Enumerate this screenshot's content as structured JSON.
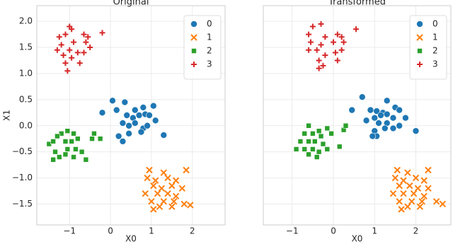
{
  "chart_data": [
    {
      "type": "scatter",
      "title": "Original",
      "xlabel": "X0",
      "ylabel": "X1",
      "xlim": [
        -1.8,
        2.8
      ],
      "ylim": [
        -1.9,
        2.3
      ],
      "xticks": [
        {
          "value": -1,
          "label": "−1"
        },
        0,
        1,
        2
      ],
      "yticks": [
        {
          "value": -1.5,
          "label": "−1.5"
        },
        {
          "value": -1,
          "label": "−1.0"
        },
        {
          "value": -0.5,
          "label": "−0.5"
        },
        {
          "value": 0,
          "label": "0.0"
        },
        0.5,
        {
          "value": 1,
          "label": "1.0"
        },
        1.5,
        {
          "value": 2,
          "label": "2.0"
        }
      ],
      "grid": true,
      "legend": "upper right",
      "series": [
        {
          "name": "0",
          "color": "#1f77b4",
          "marker": "circle",
          "x": [
            0.05,
            0.35,
            -0.2,
            0.15,
            0.6,
            0.8,
            1.05,
            0.4,
            0.55,
            0.7,
            0.85,
            0.95,
            1.1,
            0.3,
            0.45,
            0.6,
            0.8,
            0.9,
            0.45,
            0.2,
            0.3,
            0.75,
            1.3
          ],
          "y": [
            0.48,
            0.45,
            0.25,
            0.3,
            0.3,
            0.35,
            0.38,
            0.2,
            0.15,
            0.2,
            0.22,
            0.2,
            0.1,
            0.05,
            0.0,
            0.05,
            -0.05,
            0.0,
            -0.15,
            -0.2,
            -0.3,
            -0.12,
            -0.18
          ]
        },
        {
          "name": "1",
          "color": "#ff7f0e",
          "marker": "x",
          "x": [
            0.95,
            1.3,
            1.85,
            0.9,
            1.1,
            1.4,
            1.6,
            1.05,
            1.25,
            1.5,
            1.75,
            0.85,
            1.15,
            1.4,
            1.6,
            1.0,
            1.3,
            1.55,
            1.8,
            1.95,
            1.05,
            1.5,
            1.2
          ],
          "y": [
            -0.85,
            -0.9,
            -0.85,
            -1.0,
            -1.05,
            -1.0,
            -1.05,
            -1.15,
            -1.2,
            -1.15,
            -1.2,
            -1.3,
            -1.3,
            -1.3,
            -1.35,
            -1.45,
            -1.45,
            -1.45,
            -1.5,
            -1.52,
            -1.6,
            -1.55,
            -1.55
          ]
        },
        {
          "name": "2",
          "color": "#2ca02c",
          "marker": "square",
          "x": [
            -1.5,
            -1.35,
            -1.4,
            -1.2,
            -1.05,
            -0.9,
            -1.3,
            -1.1,
            -0.95,
            -0.8,
            -1.25,
            -1.1,
            -0.85,
            -0.7,
            -1.05,
            -1.4,
            -0.9,
            -0.6,
            -0.4,
            -0.25,
            -0.45
          ],
          "y": [
            -0.35,
            -0.5,
            -0.3,
            -0.15,
            -0.1,
            -0.15,
            -0.2,
            -0.3,
            -0.3,
            -0.25,
            -0.6,
            -0.55,
            -0.45,
            -0.5,
            -0.45,
            -0.65,
            -0.6,
            -0.65,
            -0.15,
            -0.25,
            -0.25
          ]
        },
        {
          "name": "3",
          "color": "#d62728",
          "marker": "plus",
          "x": [
            -1.0,
            -0.95,
            -1.1,
            -1.25,
            -0.65,
            -0.55,
            -0.2,
            -1.2,
            -0.9,
            -0.6,
            -0.5,
            -1.3,
            -1.0,
            -0.8,
            -0.65,
            -1.15,
            -0.95,
            -1.1,
            -1.05,
            -0.75
          ],
          "y": [
            1.9,
            1.85,
            1.75,
            1.7,
            1.75,
            1.7,
            1.78,
            1.55,
            1.6,
            1.6,
            1.5,
            1.45,
            1.45,
            1.4,
            1.4,
            1.35,
            1.3,
            1.2,
            1.05,
            1.2
          ]
        }
      ]
    },
    {
      "type": "scatter",
      "title": "Transformed",
      "xlabel": "X0",
      "xlim": [
        -1.7,
        2.85
      ],
      "ylim": [
        -1.9,
        2.3
      ],
      "xticks": [
        {
          "value": -1,
          "label": "−1"
        },
        0,
        1,
        2
      ],
      "yticks": [
        -1.5,
        -1,
        -0.5,
        0,
        0.5,
        1,
        1.5,
        2
      ],
      "grid": true,
      "legend": "upper right",
      "series": [
        {
          "name": "0",
          "color": "#1f77b4",
          "marker": "circle",
          "x": [
            0.7,
            1.3,
            0.45,
            0.9,
            1.05,
            1.2,
            1.5,
            1.6,
            1.0,
            1.15,
            1.3,
            1.45,
            1.75,
            0.8,
            1.1,
            1.3,
            1.6,
            1.0,
            1.25,
            1.45,
            1.05,
            0.95,
            2.0
          ],
          "y": [
            0.55,
            0.48,
            0.3,
            0.3,
            0.28,
            0.25,
            0.35,
            0.3,
            0.15,
            0.2,
            0.22,
            0.15,
            0.15,
            0.1,
            0.05,
            0.05,
            0.0,
            -0.1,
            -0.05,
            -0.05,
            -0.2,
            -0.2,
            -0.1
          ]
        },
        {
          "name": "1",
          "color": "#ff7f0e",
          "marker": "x",
          "x": [
            1.55,
            1.8,
            2.3,
            1.5,
            1.7,
            2.0,
            2.2,
            1.6,
            1.85,
            2.05,
            2.3,
            1.45,
            1.7,
            1.95,
            2.2,
            1.6,
            1.9,
            2.15,
            2.5,
            2.65,
            1.65,
            2.1,
            1.8
          ],
          "y": [
            -0.85,
            -0.9,
            -0.85,
            -1.0,
            -1.05,
            -1.0,
            -1.05,
            -1.15,
            -1.15,
            -1.2,
            -1.2,
            -1.3,
            -1.3,
            -1.3,
            -1.35,
            -1.45,
            -1.45,
            -1.45,
            -1.45,
            -1.5,
            -1.6,
            -1.55,
            -1.55
          ]
        },
        {
          "name": "2",
          "color": "#2ca02c",
          "marker": "square",
          "x": [
            -0.6,
            -0.35,
            -0.15,
            -0.7,
            -0.5,
            -0.3,
            -0.05,
            -0.8,
            -0.6,
            -0.45,
            -0.25,
            -0.9,
            -0.7,
            -0.5,
            -0.35,
            -0.15,
            0.15,
            -0.6,
            -0.4,
            0.25,
            0.3
          ],
          "y": [
            0.0,
            -0.1,
            -0.05,
            -0.15,
            -0.15,
            -0.2,
            -0.15,
            -0.3,
            -0.3,
            -0.3,
            -0.35,
            -0.45,
            -0.45,
            -0.45,
            -0.5,
            -0.45,
            -0.4,
            -0.55,
            -0.6,
            -0.08,
            0.0
          ]
        },
        {
          "name": "3",
          "color": "#d62728",
          "marker": "plus",
          "x": [
            -0.5,
            -0.3,
            -0.6,
            -0.2,
            0.1,
            0.2,
            0.55,
            -0.55,
            -0.3,
            0.0,
            0.25,
            -0.6,
            -0.4,
            -0.2,
            0.05,
            0.2,
            -0.35,
            -0.25,
            -0.35,
            0.1
          ],
          "y": [
            1.9,
            1.95,
            1.75,
            1.7,
            1.75,
            1.7,
            1.85,
            1.6,
            1.55,
            1.6,
            1.6,
            1.45,
            1.45,
            1.35,
            1.4,
            1.45,
            1.25,
            1.15,
            1.1,
            1.25
          ]
        }
      ]
    }
  ]
}
